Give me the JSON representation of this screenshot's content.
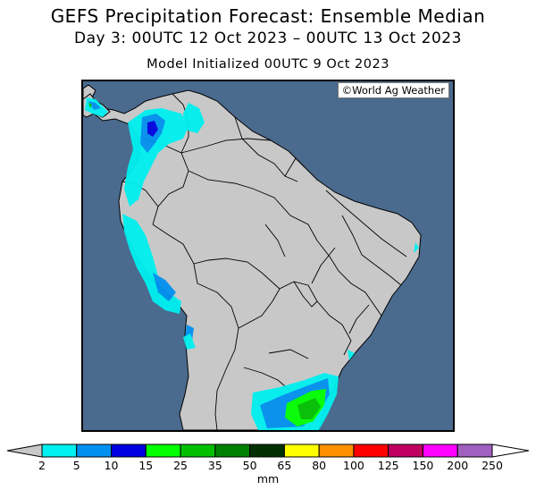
{
  "title": "GEFS Precipitation Forecast: Ensemble Median",
  "subtitle": "Day 3: 00UTC 12 Oct 2023 – 00UTC 13 Oct 2023",
  "init_line": "Model Initialized 00UTC 9 Oct 2023",
  "credit": "©World Ag Weather",
  "colorbar": {
    "unit": "mm",
    "ticks": [
      "2",
      "5",
      "10",
      "15",
      "25",
      "35",
      "50",
      "65",
      "80",
      "100",
      "125",
      "150",
      "200",
      "250"
    ],
    "colors": [
      "#00f0f0",
      "#0090f0",
      "#0000e0",
      "#00ff00",
      "#00c000",
      "#008000",
      "#003000",
      "#ffff00",
      "#ff9000",
      "#ff0000",
      "#c00060",
      "#ff00ff",
      "#a060c0"
    ],
    "under_color": "#c8c8c8",
    "over_color": "#ffffff"
  },
  "colors": {
    "ocean": "#4a6a8e",
    "land": "#c8c8c8"
  }
}
